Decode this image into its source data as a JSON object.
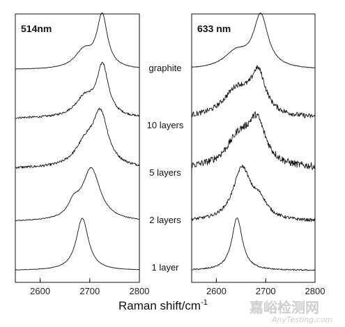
{
  "chart_data": {
    "type": "line",
    "xlabel": "Raman shift/cm",
    "xlabel_superscript": "-1",
    "sample_labels": [
      "graphite",
      "10 layers",
      "5 layers",
      "2 layers",
      "1 layer"
    ],
    "panels": [
      {
        "title": "514nm",
        "xlim": [
          2550,
          2800
        ],
        "xticks": [
          2600,
          2700,
          2800
        ],
        "series": [
          {
            "name": "graphite",
            "peaks": [
              {
                "center": 2725,
                "width": 13,
                "amp": 1.0
              },
              {
                "center": 2688,
                "width": 22,
                "amp": 0.33
              }
            ],
            "noise": 0.005
          },
          {
            "name": "10 layers",
            "peaks": [
              {
                "center": 2726,
                "width": 14,
                "amp": 1.0
              },
              {
                "center": 2690,
                "width": 24,
                "amp": 0.38
              }
            ],
            "noise": 0.02
          },
          {
            "name": "5 layers",
            "peaks": [
              {
                "center": 2722,
                "width": 18,
                "amp": 1.0
              },
              {
                "center": 2692,
                "width": 26,
                "amp": 0.45
              }
            ],
            "noise": 0.025
          },
          {
            "name": "2 layers",
            "peaks": [
              {
                "center": 2703,
                "width": 22,
                "amp": 1.0
              },
              {
                "center": 2668,
                "width": 14,
                "amp": 0.25
              }
            ],
            "noise": 0.008
          },
          {
            "name": "1 layer",
            "peaks": [
              {
                "center": 2685,
                "width": 15,
                "amp": 1.0
              }
            ],
            "noise": 0.004
          }
        ]
      },
      {
        "title": "633 nm",
        "xlim": [
          2550,
          2800
        ],
        "xticks": [
          2600,
          2700,
          2800
        ],
        "series": [
          {
            "name": "graphite",
            "peaks": [
              {
                "center": 2690,
                "width": 18,
                "amp": 1.0
              },
              {
                "center": 2640,
                "width": 30,
                "amp": 0.3
              }
            ],
            "noise": 0.006
          },
          {
            "name": "10 layers",
            "peaks": [
              {
                "center": 2685,
                "width": 18,
                "amp": 0.8
              },
              {
                "center": 2642,
                "width": 34,
                "amp": 0.55
              }
            ],
            "noise": 0.05
          },
          {
            "name": "5 layers",
            "peaks": [
              {
                "center": 2682,
                "width": 22,
                "amp": 0.85
              },
              {
                "center": 2645,
                "width": 30,
                "amp": 0.55
              }
            ],
            "noise": 0.07
          },
          {
            "name": "2 layers",
            "peaks": [
              {
                "center": 2652,
                "width": 22,
                "amp": 1.0
              },
              {
                "center": 2688,
                "width": 18,
                "amp": 0.3
              }
            ],
            "noise": 0.03
          },
          {
            "name": "1 layer",
            "peaks": [
              {
                "center": 2642,
                "width": 13,
                "amp": 1.0
              }
            ],
            "noise": 0.012
          }
        ]
      }
    ],
    "grid": false
  },
  "watermark": {
    "text_cn": "嘉峪检测网",
    "text_en": "AnyTesting.com"
  }
}
